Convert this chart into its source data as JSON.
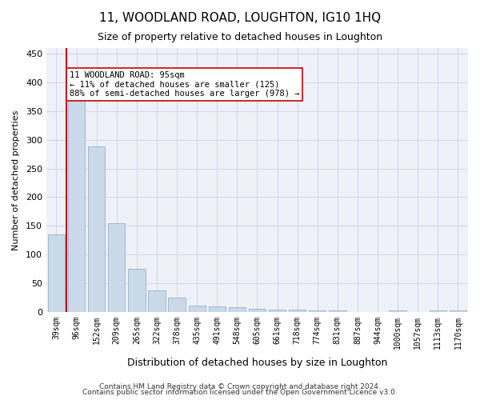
{
  "title": "11, WOODLAND ROAD, LOUGHTON, IG10 1HQ",
  "subtitle": "Size of property relative to detached houses in Loughton",
  "xlabel": "Distribution of detached houses by size in Loughton",
  "ylabel": "Number of detached properties",
  "bar_labels": [
    "39sqm",
    "96sqm",
    "152sqm",
    "209sqm",
    "265sqm",
    "322sqm",
    "378sqm",
    "435sqm",
    "491sqm",
    "548sqm",
    "605sqm",
    "661sqm",
    "718sqm",
    "774sqm",
    "831sqm",
    "887sqm",
    "944sqm",
    "1000sqm",
    "1057sqm",
    "1113sqm",
    "1170sqm"
  ],
  "bar_values": [
    135,
    370,
    288,
    155,
    75,
    37,
    25,
    11,
    9,
    8,
    5,
    4,
    4,
    2,
    2,
    0,
    0,
    3,
    0,
    2,
    3
  ],
  "bar_color": "#c9d9e8",
  "bar_edge_color": "#a0b8cc",
  "property_line_x": 95,
  "property_line_color": "#cc0000",
  "annotation_text": "11 WOODLAND ROAD: 95sqm\n← 11% of detached houses are smaller (125)\n88% of semi-detached houses are larger (978) →",
  "annotation_box_color": "#ffffff",
  "annotation_box_edge": "#cc0000",
  "ylim": [
    0,
    460
  ],
  "yticks": [
    0,
    50,
    100,
    150,
    200,
    250,
    300,
    350,
    400,
    450
  ],
  "grid_color": "#d0d8e8",
  "bg_color": "#eef2f8",
  "footer_line1": "Contains HM Land Registry data © Crown copyright and database right 2024.",
  "footer_line2": "Contains public sector information licensed under the Open Government Licence v3.0."
}
